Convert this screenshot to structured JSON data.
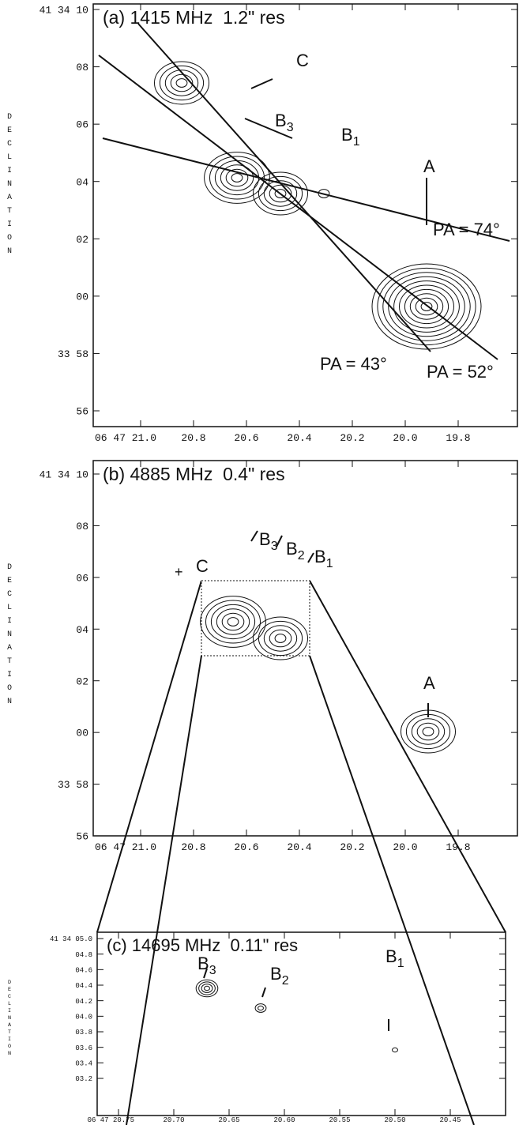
{
  "panels": [
    {
      "title": "(a) 1415 MHz  1.2\" res",
      "y_axis_label": "DECLINATION",
      "y_ticks": [
        "41 34 10",
        "08",
        "06",
        "04",
        "02",
        "00",
        "33 58",
        "56"
      ],
      "x_ticks": [
        "06 47 21.0",
        "20.8",
        "20.6",
        "20.4",
        "20.2",
        "20.0",
        "19.8"
      ],
      "labels": [
        {
          "text": "C"
        },
        {
          "text": "B",
          "sub": "3"
        },
        {
          "text": "B",
          "sub": "1"
        },
        {
          "text": "A"
        },
        {
          "text": "PA = 74°"
        },
        {
          "text": "PA = 43°"
        },
        {
          "text": "PA = 52°"
        }
      ]
    },
    {
      "title": "(b) 4885 MHz  0.4\" res",
      "y_axis_label": "DECLINATION",
      "y_ticks": [
        "41 34 10",
        "08",
        "06",
        "04",
        "02",
        "00",
        "33 58",
        "56"
      ],
      "x_ticks": [
        "06 47 21.0",
        "20.8",
        "20.6",
        "20.4",
        "20.2",
        "20.0",
        "19.8"
      ],
      "labels": [
        {
          "text": "C"
        },
        {
          "text": "B",
          "sub": "3"
        },
        {
          "text": "B",
          "sub": "2"
        },
        {
          "text": "B",
          "sub": "1"
        },
        {
          "text": "A"
        }
      ]
    },
    {
      "title": "(c) 14695 MHz  0.11\" res",
      "y_axis_label": "DECLINATION",
      "y_ticks": [
        "41 34 05.0",
        "04.8",
        "04.6",
        "04.4",
        "04.2",
        "04.0",
        "03.8",
        "03.6",
        "03.4",
        "03.2"
      ],
      "x_ticks": [
        "06 47 20.75",
        "20.70",
        "20.65",
        "20.60",
        "20.55",
        "20.50",
        "20.45"
      ],
      "labels": [
        {
          "text": "B",
          "sub": "3"
        },
        {
          "text": "B",
          "sub": "2"
        },
        {
          "text": "B",
          "sub": "1"
        }
      ]
    }
  ]
}
